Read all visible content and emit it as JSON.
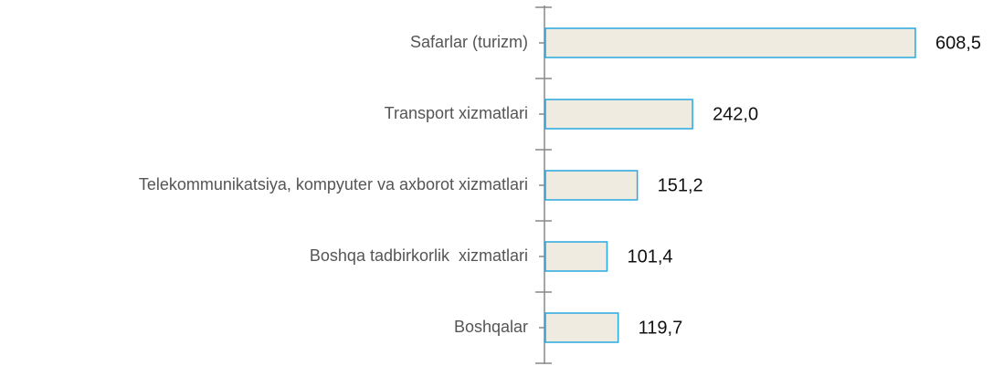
{
  "chart_data": {
    "type": "hbar",
    "categories": [
      "Safarlar (turizm)",
      "Transport xizmatlari",
      "Telekommunikatsiya, kompyuter va axborot xizmatlari",
      "Boshqa tadbirkorlik  xizmatlari",
      "Boshqalar"
    ],
    "values": [
      608.5,
      242.0,
      151.2,
      101.4,
      119.7
    ],
    "value_labels": [
      "608,5",
      "242,0",
      "151,2",
      "101,4",
      "119,7"
    ],
    "color": "#efebe0",
    "edge_color": "#29a8e0"
  }
}
